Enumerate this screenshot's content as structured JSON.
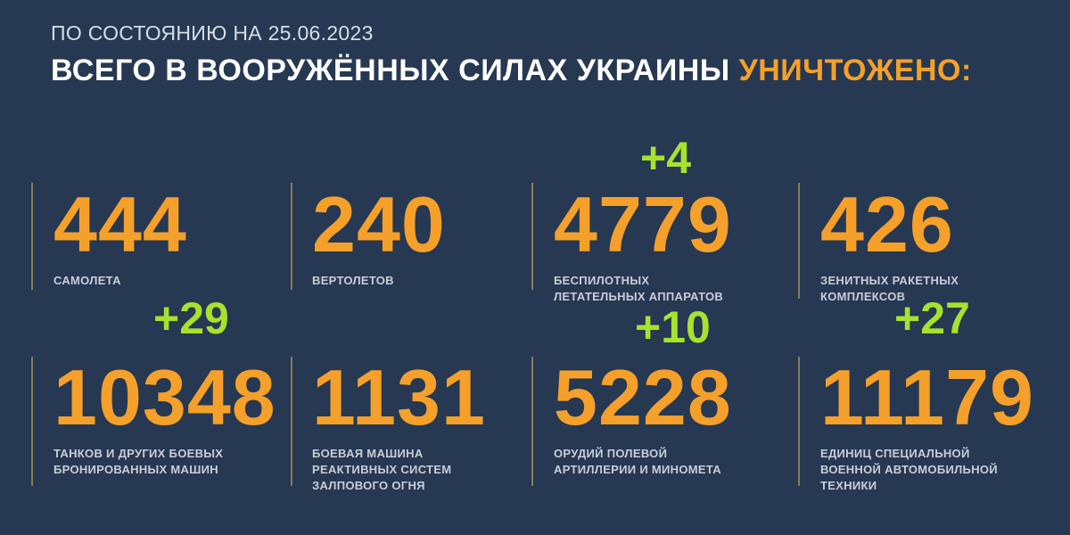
{
  "header": {
    "subtitle": "ПО СОСТОЯНИЮ НА 25.06.2023",
    "title_main": "ВСЕГО В ВООРУЖЁННЫХ СИЛАХ УКРАИНЫ",
    "title_highlight": "УНИЧТОЖЕНО:"
  },
  "stats": [
    {
      "value": "444",
      "label_1": "САМОЛЕТА",
      "label_2": "",
      "label_3": "",
      "delta": ""
    },
    {
      "value": "240",
      "label_1": "ВЕРТОЛЕТОВ",
      "label_2": "",
      "label_3": "",
      "delta": ""
    },
    {
      "value": "4779",
      "label_1": "БЕСПИЛОТНЫХ",
      "label_2": "ЛЕТАТЕЛЬНЫХ АППАРАТОВ",
      "label_3": "",
      "delta": "+4"
    },
    {
      "value": "426",
      "label_1": "ЗЕНИТНЫХ РАКЕТНЫХ",
      "label_2": "КОМПЛЕКСОВ",
      "label_3": "",
      "delta": ""
    },
    {
      "value": "10348",
      "label_1": "ТАНКОВ И ДРУГИХ БОЕВЫХ",
      "label_2": "БРОНИРОВАННЫХ МАШИН",
      "label_3": "",
      "delta": "+29"
    },
    {
      "value": "1131",
      "label_1": "БОЕВАЯ МАШИНА",
      "label_2": "РЕАКТИВНЫХ СИСТЕМ",
      "label_3": "ЗАЛПОВОГО ОГНЯ",
      "delta": ""
    },
    {
      "value": "5228",
      "label_1": "ОРУДИЙ ПОЛЕВОЙ",
      "label_2": "АРТИЛЛЕРИИ И МИНОМЕТА",
      "label_3": "",
      "delta": "+10"
    },
    {
      "value": "11179",
      "label_1": "ЕДИНИЦ СПЕЦИАЛЬНОЙ",
      "label_2": "ВОЕННОЙ АВТОМОБИЛЬНОЙ",
      "label_3": "ТЕХНИКИ",
      "delta": "+27"
    }
  ],
  "colors": {
    "background": "#263852",
    "accent": "#f5a02a",
    "delta": "#a6e22e"
  }
}
